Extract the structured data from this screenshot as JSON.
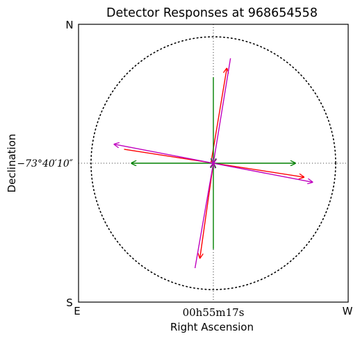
{
  "chart_data": {
    "type": "vector",
    "title": "Detector Responses at 968654558",
    "xlabel": "Right Ascension",
    "ylabel": "Declination",
    "x_center_label": "00h55m17s",
    "y_center_label": "−73°40′10″",
    "direction_labels": {
      "north": "N",
      "south": "S",
      "east": "E",
      "west": "W"
    },
    "xlim": [
      -1.1,
      1.1
    ],
    "ylim": [
      -1.1,
      1.1
    ],
    "crosshair": true,
    "circle_radius": 1.0,
    "series": [
      {
        "color": "#ff0000",
        "vectors": [
          {
            "tail": [
              -0.02,
              0.0
            ],
            "head": [
              0.11,
              0.75
            ]
          },
          {
            "tail": [
              0.0,
              0.0
            ],
            "head": [
              -0.11,
              -0.75
            ]
          },
          {
            "tail": [
              -0.73,
              0.11
            ],
            "head": [
              0.74,
              -0.11
            ]
          }
        ]
      },
      {
        "color": "#008000",
        "vectors": [
          {
            "tail": [
              0.0,
              0.68
            ],
            "head": [
              0.0,
              0.0
            ]
          },
          {
            "tail": [
              0.0,
              -0.68
            ],
            "head": [
              0.0,
              0.0
            ]
          },
          {
            "tail": [
              0.0,
              0.0
            ],
            "head": [
              0.67,
              0.0
            ]
          },
          {
            "tail": [
              0.0,
              0.0
            ],
            "head": [
              -0.67,
              0.0
            ]
          }
        ]
      },
      {
        "color": "#bf00bf",
        "vectors": [
          {
            "tail": [
              0.14,
              0.83
            ],
            "head": [
              0.0,
              0.0
            ]
          },
          {
            "tail": [
              -0.15,
              -0.83
            ],
            "head": [
              0.0,
              0.0
            ]
          },
          {
            "tail": [
              0.0,
              0.0
            ],
            "head": [
              -0.81,
              0.15
            ]
          },
          {
            "tail": [
              0.0,
              0.0
            ],
            "head": [
              0.81,
              -0.15
            ]
          }
        ]
      }
    ]
  }
}
